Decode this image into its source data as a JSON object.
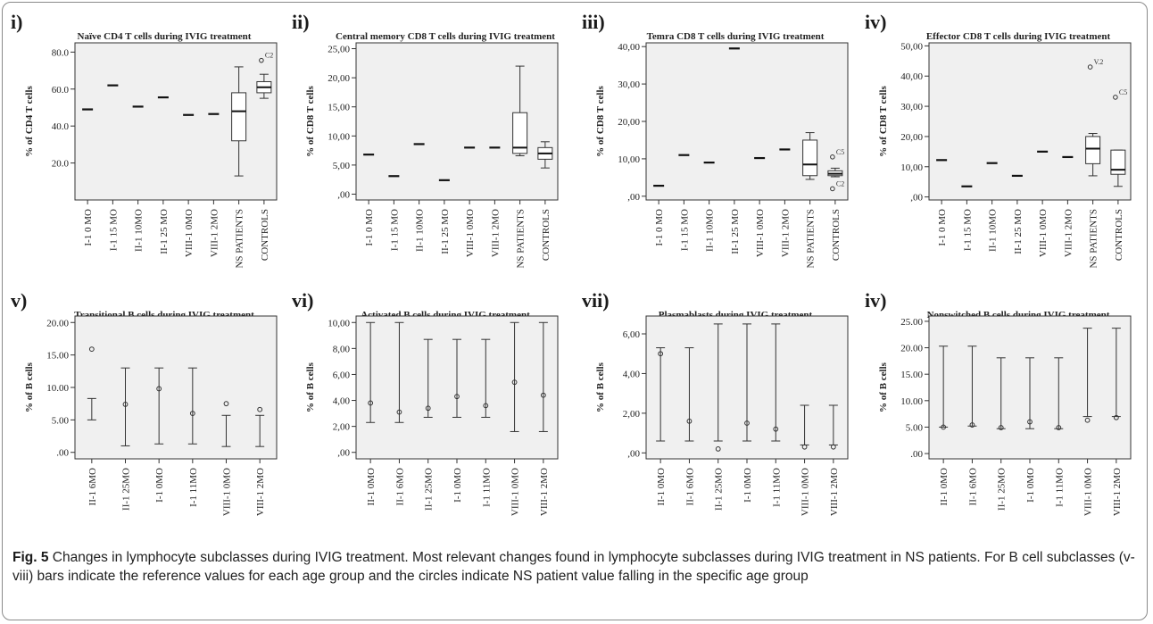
{
  "figure_caption": {
    "label": "Fig. 5",
    "text": "Changes in lymphocyte subclasses during IVIG treatment. Most relevant changes found in lymphocyte subclasses during IVIG treatment in NS patients. For B cell subclasses (v-viii) bars indicate the reference values for each age group and the circles indicate NS patient value falling in the specific age group"
  },
  "chart_data": [
    {
      "panel": "i)",
      "type": "boxplot",
      "title": "Naïve CD4 T cells during IVIG treatment",
      "ylabel": "% of CD4 T cells",
      "ylim": [
        0,
        85
      ],
      "yticks": [
        20,
        40,
        60,
        80
      ],
      "ytick_labels": [
        "20.0",
        "40.0",
        "60.0",
        "80.0"
      ],
      "categories": [
        "I-1 0 MO",
        "I-1 15 MO",
        "II-1 10MO",
        "II-1 25 MO",
        "VIII-1 0MO",
        "VIII-1 2MO",
        "NS PATIENTS",
        "CONTROLS"
      ],
      "values": [
        49,
        62,
        50.5,
        55.5,
        46,
        46.5,
        null,
        null
      ],
      "boxes": [
        {
          "category": "NS PATIENTS",
          "min": 13,
          "q1": 32,
          "median": 48,
          "q3": 58,
          "max": 72
        },
        {
          "category": "CONTROLS",
          "min": 55,
          "q1": 58,
          "median": 61,
          "q3": 64,
          "max": 68
        }
      ],
      "outliers": [
        {
          "category": "CONTROLS",
          "value": 75.5,
          "label": "C2"
        }
      ]
    },
    {
      "panel": "ii)",
      "type": "boxplot",
      "title": "Central memory CD8 T cells during IVIG treatment",
      "ylabel": "% of CD8 T cells",
      "ylim": [
        -1,
        26
      ],
      "yticks": [
        0,
        5,
        10,
        15,
        20,
        25
      ],
      "ytick_labels": [
        ",00",
        "5,00",
        "10,00",
        "15,00",
        "20,00",
        "25,00"
      ],
      "categories": [
        "I-1 0 MO",
        "I-1 15 MO",
        "II-1 10MO",
        "II-1 25 MO",
        "VIII-1 0MO",
        "VIII-1 2MO",
        "NS PATIENTS",
        "CONTROLS"
      ],
      "values": [
        6.8,
        3.1,
        8.6,
        2.4,
        8,
        8,
        null,
        null
      ],
      "boxes": [
        {
          "category": "NS PATIENTS",
          "min": 6.6,
          "q1": 7,
          "median": 8,
          "q3": 14,
          "max": 22
        },
        {
          "category": "CONTROLS",
          "min": 4.5,
          "q1": 6,
          "median": 7,
          "q3": 8,
          "max": 9
        }
      ],
      "outliers": []
    },
    {
      "panel": "iii)",
      "type": "boxplot",
      "title": "Temra CD8 T cells during IVIG treatment",
      "ylabel": "% of CD8 T cells",
      "ylim": [
        -1,
        41
      ],
      "yticks": [
        0,
        10,
        20,
        30,
        40
      ],
      "ytick_labels": [
        ",00",
        "10,00",
        "20,00",
        "30,00",
        "40,00"
      ],
      "categories": [
        "I-1 0 MO",
        "I-1 15 MO",
        "II-1 10MO",
        "II-1 25 MO",
        "VIII-1 0MO",
        "VIII-1 2MO",
        "NS PATIENTS",
        "CONTROLS"
      ],
      "values": [
        2.8,
        11,
        9,
        39.5,
        10.2,
        12.5,
        null,
        null
      ],
      "boxes": [
        {
          "category": "NS PATIENTS",
          "min": 4.5,
          "q1": 5.5,
          "median": 8.5,
          "q3": 15,
          "max": 17
        },
        {
          "category": "CONTROLS",
          "min": 5.2,
          "q1": 5.5,
          "median": 6,
          "q3": 6.8,
          "max": 7.5
        }
      ],
      "outliers": [
        {
          "category": "CONTROLS",
          "value": 10.5,
          "label": "C5"
        },
        {
          "category": "CONTROLS",
          "value": 2,
          "label": "C2"
        }
      ]
    },
    {
      "panel": "iv)",
      "type": "boxplot",
      "title": "Effector CD8 T cells during IVIG treatment",
      "ylabel": "% of CD8 T cells",
      "ylim": [
        -1,
        51
      ],
      "yticks": [
        0,
        10,
        20,
        30,
        40,
        50
      ],
      "ytick_labels": [
        ",00",
        "10,00",
        "20,00",
        "30,00",
        "40,00",
        "50,00"
      ],
      "categories": [
        "I-1 0 MO",
        "I-1 15 MO",
        "II-1 10MO",
        "II-1 25 MO",
        "VIII-1 0MO",
        "VIII-1 2MO",
        "NS PATIENTS",
        "CONTROLS"
      ],
      "values": [
        12.2,
        3.5,
        11.2,
        7,
        15,
        13.2,
        null,
        null
      ],
      "boxes": [
        {
          "category": "NS PATIENTS",
          "min": 7,
          "q1": 11,
          "median": 16,
          "q3": 20,
          "max": 21
        },
        {
          "category": "CONTROLS",
          "min": 3.5,
          "q1": 7.5,
          "median": 9,
          "q3": 15.5,
          "max": 15.5
        }
      ],
      "outliers": [
        {
          "category": "NS PATIENTS",
          "value": 43,
          "label": "V.2"
        },
        {
          "category": "CONTROLS",
          "value": 33,
          "label": "C5"
        }
      ]
    },
    {
      "panel": "v)",
      "type": "range",
      "title": "Transitional B cells during IVIG treatment",
      "ylabel": "% of B cells",
      "ylim": [
        -1,
        21
      ],
      "yticks": [
        0,
        5,
        10,
        15,
        20
      ],
      "ytick_labels": [
        ".00",
        "5.00",
        "10.00",
        "15.00",
        "20.00"
      ],
      "categories": [
        "II-1 6MO",
        "II-1 25MO",
        "I-1 0MO",
        "I-1 11MO",
        "VIII-1 0MO",
        "VIII-1 2MO"
      ],
      "ranges": [
        [
          5,
          8.3
        ],
        [
          1,
          13
        ],
        [
          1.3,
          13
        ],
        [
          1.3,
          13
        ],
        [
          0.9,
          5.7
        ],
        [
          0.9,
          5.7
        ]
      ],
      "patient_values": [
        15.9,
        7.4,
        9.8,
        6,
        7.5,
        6.6
      ]
    },
    {
      "panel": "vi)",
      "type": "range",
      "title": "Activated B cells during IVIG treatment",
      "ylabel": "% of B cells",
      "ylim": [
        -0.5,
        10.5
      ],
      "yticks": [
        0,
        2,
        4,
        6,
        8,
        10
      ],
      "ytick_labels": [
        ",00",
        "2,00",
        "4,00",
        "6,00",
        "8,00",
        "10,00"
      ],
      "categories": [
        "II-1 0MO",
        "II-1 6MO",
        "II-1 25MO",
        "I-1 0MO",
        "I-1 11MO",
        "VIII-1 0MO",
        "VIII-1 2MO"
      ],
      "ranges": [
        [
          2.3,
          10
        ],
        [
          2.3,
          10
        ],
        [
          2.7,
          8.7
        ],
        [
          2.7,
          8.7
        ],
        [
          2.7,
          8.7
        ],
        [
          1.6,
          10
        ],
        [
          1.6,
          10
        ]
      ],
      "patient_values": [
        3.8,
        3.1,
        3.4,
        4.3,
        3.6,
        5.4,
        4.4
      ]
    },
    {
      "panel": "vii)",
      "type": "range",
      "title": "Plasmablasts during IVIG treatment",
      "ylabel": "% of B cells",
      "ylim": [
        -0.3,
        6.9
      ],
      "yticks": [
        0,
        2,
        4,
        6
      ],
      "ytick_labels": [
        ",00",
        "2,00",
        "4,00",
        "6,00"
      ],
      "categories": [
        "II-1 0MO",
        "II-1 6MO",
        "II-1 25MO",
        "I-1 0MO",
        "I-1 11MO",
        "VIII-1 0MO",
        "VIII-1 2MO"
      ],
      "ranges": [
        [
          0.6,
          5.3
        ],
        [
          0.6,
          5.3
        ],
        [
          0.6,
          6.5
        ],
        [
          0.6,
          6.5
        ],
        [
          0.6,
          6.5
        ],
        [
          0.4,
          2.4
        ],
        [
          0.4,
          2.4
        ]
      ],
      "patient_values": [
        5,
        1.6,
        0.2,
        1.5,
        1.2,
        0.3,
        0.3
      ]
    },
    {
      "panel": "iv)",
      "type": "range",
      "title": "Nonswitched B cells during IVIG treatment",
      "ylabel": "% of B cells",
      "ylim": [
        -1,
        26
      ],
      "yticks": [
        0,
        5,
        10,
        15,
        20,
        25
      ],
      "ytick_labels": [
        ".00",
        "5.00",
        "10.00",
        "15.00",
        "20.00",
        "25.00"
      ],
      "categories": [
        "II-1 0MO",
        "II-1 6MO",
        "II-1 25MO",
        "I-1 0MO",
        "I-1 11MO",
        "VIII-1 0MO",
        "VIII-1 2MO"
      ],
      "ranges": [
        [
          5,
          20.3
        ],
        [
          5.2,
          20.3
        ],
        [
          4.7,
          18.1
        ],
        [
          4.7,
          18.1
        ],
        [
          4.7,
          18.1
        ],
        [
          7,
          23.7
        ],
        [
          7,
          23.7
        ]
      ],
      "patient_values": [
        5,
        5.4,
        4.9,
        6,
        4.9,
        6.3,
        6.8
      ]
    }
  ]
}
